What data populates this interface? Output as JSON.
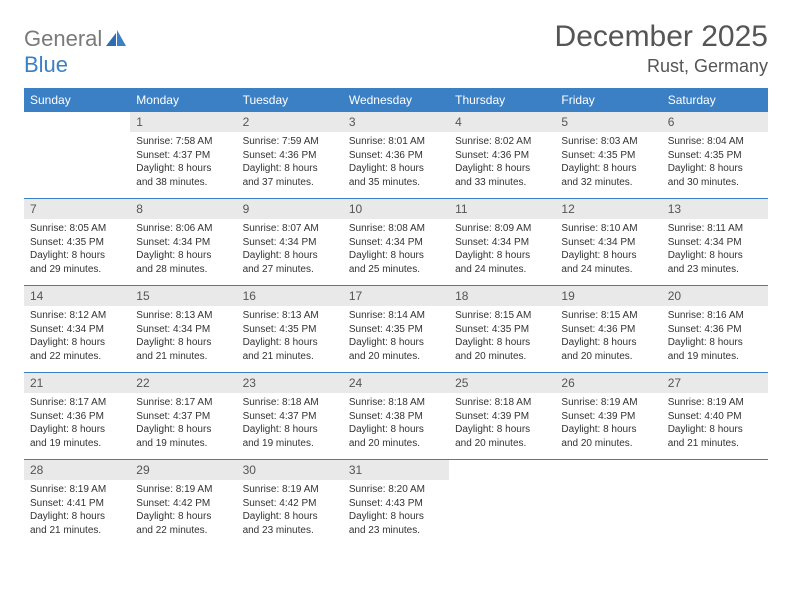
{
  "brand": {
    "general": "General",
    "blue": "Blue"
  },
  "header": {
    "title": "December 2025",
    "location": "Rust, Germany"
  },
  "colors": {
    "header_bg": "#3b7fc4",
    "header_text": "#ffffff",
    "daynum_bg": "#e9e9e9",
    "row_border": "#3b7fc4",
    "page_bg": "#ffffff",
    "body_text": "#333333",
    "title_text": "#555555"
  },
  "weekdays": [
    "Sunday",
    "Monday",
    "Tuesday",
    "Wednesday",
    "Thursday",
    "Friday",
    "Saturday"
  ],
  "weeks": [
    [
      null,
      {
        "n": "1",
        "sr": "Sunrise: 7:58 AM",
        "ss": "Sunset: 4:37 PM",
        "d1": "Daylight: 8 hours",
        "d2": "and 38 minutes."
      },
      {
        "n": "2",
        "sr": "Sunrise: 7:59 AM",
        "ss": "Sunset: 4:36 PM",
        "d1": "Daylight: 8 hours",
        "d2": "and 37 minutes."
      },
      {
        "n": "3",
        "sr": "Sunrise: 8:01 AM",
        "ss": "Sunset: 4:36 PM",
        "d1": "Daylight: 8 hours",
        "d2": "and 35 minutes."
      },
      {
        "n": "4",
        "sr": "Sunrise: 8:02 AM",
        "ss": "Sunset: 4:36 PM",
        "d1": "Daylight: 8 hours",
        "d2": "and 33 minutes."
      },
      {
        "n": "5",
        "sr": "Sunrise: 8:03 AM",
        "ss": "Sunset: 4:35 PM",
        "d1": "Daylight: 8 hours",
        "d2": "and 32 minutes."
      },
      {
        "n": "6",
        "sr": "Sunrise: 8:04 AM",
        "ss": "Sunset: 4:35 PM",
        "d1": "Daylight: 8 hours",
        "d2": "and 30 minutes."
      }
    ],
    [
      {
        "n": "7",
        "sr": "Sunrise: 8:05 AM",
        "ss": "Sunset: 4:35 PM",
        "d1": "Daylight: 8 hours",
        "d2": "and 29 minutes."
      },
      {
        "n": "8",
        "sr": "Sunrise: 8:06 AM",
        "ss": "Sunset: 4:34 PM",
        "d1": "Daylight: 8 hours",
        "d2": "and 28 minutes."
      },
      {
        "n": "9",
        "sr": "Sunrise: 8:07 AM",
        "ss": "Sunset: 4:34 PM",
        "d1": "Daylight: 8 hours",
        "d2": "and 27 minutes."
      },
      {
        "n": "10",
        "sr": "Sunrise: 8:08 AM",
        "ss": "Sunset: 4:34 PM",
        "d1": "Daylight: 8 hours",
        "d2": "and 25 minutes."
      },
      {
        "n": "11",
        "sr": "Sunrise: 8:09 AM",
        "ss": "Sunset: 4:34 PM",
        "d1": "Daylight: 8 hours",
        "d2": "and 24 minutes."
      },
      {
        "n": "12",
        "sr": "Sunrise: 8:10 AM",
        "ss": "Sunset: 4:34 PM",
        "d1": "Daylight: 8 hours",
        "d2": "and 24 minutes."
      },
      {
        "n": "13",
        "sr": "Sunrise: 8:11 AM",
        "ss": "Sunset: 4:34 PM",
        "d1": "Daylight: 8 hours",
        "d2": "and 23 minutes."
      }
    ],
    [
      {
        "n": "14",
        "sr": "Sunrise: 8:12 AM",
        "ss": "Sunset: 4:34 PM",
        "d1": "Daylight: 8 hours",
        "d2": "and 22 minutes."
      },
      {
        "n": "15",
        "sr": "Sunrise: 8:13 AM",
        "ss": "Sunset: 4:34 PM",
        "d1": "Daylight: 8 hours",
        "d2": "and 21 minutes."
      },
      {
        "n": "16",
        "sr": "Sunrise: 8:13 AM",
        "ss": "Sunset: 4:35 PM",
        "d1": "Daylight: 8 hours",
        "d2": "and 21 minutes."
      },
      {
        "n": "17",
        "sr": "Sunrise: 8:14 AM",
        "ss": "Sunset: 4:35 PM",
        "d1": "Daylight: 8 hours",
        "d2": "and 20 minutes."
      },
      {
        "n": "18",
        "sr": "Sunrise: 8:15 AM",
        "ss": "Sunset: 4:35 PM",
        "d1": "Daylight: 8 hours",
        "d2": "and 20 minutes."
      },
      {
        "n": "19",
        "sr": "Sunrise: 8:15 AM",
        "ss": "Sunset: 4:36 PM",
        "d1": "Daylight: 8 hours",
        "d2": "and 20 minutes."
      },
      {
        "n": "20",
        "sr": "Sunrise: 8:16 AM",
        "ss": "Sunset: 4:36 PM",
        "d1": "Daylight: 8 hours",
        "d2": "and 19 minutes."
      }
    ],
    [
      {
        "n": "21",
        "sr": "Sunrise: 8:17 AM",
        "ss": "Sunset: 4:36 PM",
        "d1": "Daylight: 8 hours",
        "d2": "and 19 minutes."
      },
      {
        "n": "22",
        "sr": "Sunrise: 8:17 AM",
        "ss": "Sunset: 4:37 PM",
        "d1": "Daylight: 8 hours",
        "d2": "and 19 minutes."
      },
      {
        "n": "23",
        "sr": "Sunrise: 8:18 AM",
        "ss": "Sunset: 4:37 PM",
        "d1": "Daylight: 8 hours",
        "d2": "and 19 minutes."
      },
      {
        "n": "24",
        "sr": "Sunrise: 8:18 AM",
        "ss": "Sunset: 4:38 PM",
        "d1": "Daylight: 8 hours",
        "d2": "and 20 minutes."
      },
      {
        "n": "25",
        "sr": "Sunrise: 8:18 AM",
        "ss": "Sunset: 4:39 PM",
        "d1": "Daylight: 8 hours",
        "d2": "and 20 minutes."
      },
      {
        "n": "26",
        "sr": "Sunrise: 8:19 AM",
        "ss": "Sunset: 4:39 PM",
        "d1": "Daylight: 8 hours",
        "d2": "and 20 minutes."
      },
      {
        "n": "27",
        "sr": "Sunrise: 8:19 AM",
        "ss": "Sunset: 4:40 PM",
        "d1": "Daylight: 8 hours",
        "d2": "and 21 minutes."
      }
    ],
    [
      {
        "n": "28",
        "sr": "Sunrise: 8:19 AM",
        "ss": "Sunset: 4:41 PM",
        "d1": "Daylight: 8 hours",
        "d2": "and 21 minutes."
      },
      {
        "n": "29",
        "sr": "Sunrise: 8:19 AM",
        "ss": "Sunset: 4:42 PM",
        "d1": "Daylight: 8 hours",
        "d2": "and 22 minutes."
      },
      {
        "n": "30",
        "sr": "Sunrise: 8:19 AM",
        "ss": "Sunset: 4:42 PM",
        "d1": "Daylight: 8 hours",
        "d2": "and 23 minutes."
      },
      {
        "n": "31",
        "sr": "Sunrise: 8:20 AM",
        "ss": "Sunset: 4:43 PM",
        "d1": "Daylight: 8 hours",
        "d2": "and 23 minutes."
      },
      null,
      null,
      null
    ]
  ]
}
